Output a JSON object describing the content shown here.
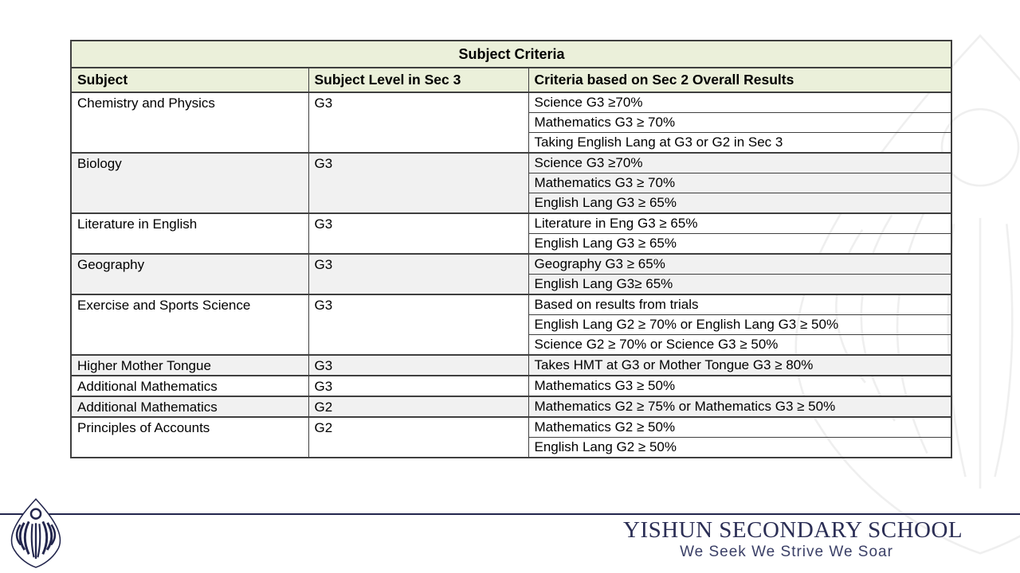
{
  "table": {
    "title": "Subject Criteria",
    "columns": [
      "Subject",
      "Subject Level in Sec 3",
      "Criteria based on Sec 2 Overall Results"
    ],
    "groups": [
      {
        "subject": "Chemistry and Physics",
        "level": "G3",
        "shaded": false,
        "criteria": [
          "Science G3 ≥70%",
          "Mathematics G3 ≥ 70%",
          "Taking English Lang at G3 or G2 in Sec 3"
        ]
      },
      {
        "subject": "Biology",
        "level": "G3",
        "shaded": true,
        "criteria": [
          "Science G3 ≥70%",
          "Mathematics G3 ≥ 70%",
          "English Lang G3 ≥ 65%"
        ]
      },
      {
        "subject": "Literature in English",
        "level": "G3",
        "shaded": false,
        "criteria": [
          "Literature in Eng G3 ≥ 65%",
          "English Lang G3 ≥ 65%"
        ]
      },
      {
        "subject": "Geography",
        "level": "G3",
        "shaded": true,
        "criteria": [
          "Geography G3 ≥ 65%",
          "English Lang G3≥ 65%"
        ]
      },
      {
        "subject": "Exercise and Sports Science",
        "level": "G3",
        "shaded": false,
        "criteria": [
          "Based on results from trials",
          "English Lang G2 ≥ 70% or English Lang G3 ≥ 50%",
          "Science G2 ≥ 70% or Science G3 ≥ 50%"
        ]
      },
      {
        "subject": "Higher Mother Tongue",
        "level": "G3",
        "shaded": true,
        "criteria": [
          "Takes HMT at G3 or Mother Tongue G3 ≥ 80%"
        ]
      },
      {
        "subject": "Additional Mathematics",
        "level": "G3",
        "shaded": false,
        "criteria": [
          "Mathematics G3 ≥ 50%"
        ]
      },
      {
        "subject": "Additional Mathematics",
        "level": "G2",
        "shaded": true,
        "criteria": [
          "Mathematics G2 ≥ 75% or Mathematics G3 ≥ 50%"
        ]
      },
      {
        "subject": "Principles of Accounts",
        "level": "G2",
        "shaded": false,
        "criteria": [
          "Mathematics G2 ≥ 50%",
          "English Lang G2 ≥ 50%"
        ]
      }
    ]
  },
  "footer": {
    "school_name": "YISHUN SECONDARY SCHOOL",
    "motto": "We Seek We Strive We Soar"
  },
  "colors": {
    "header_green": "#ebf0da",
    "shaded_row_gray": "#f1f1f1",
    "border_gray": "#3f3f3f",
    "navy": "#23264d",
    "watermark_gray": "#efefef"
  },
  "icons": {
    "school_logo": "yss-flame-leaf-logo",
    "watermark": "yss-flame-leaf-logo-faint"
  }
}
